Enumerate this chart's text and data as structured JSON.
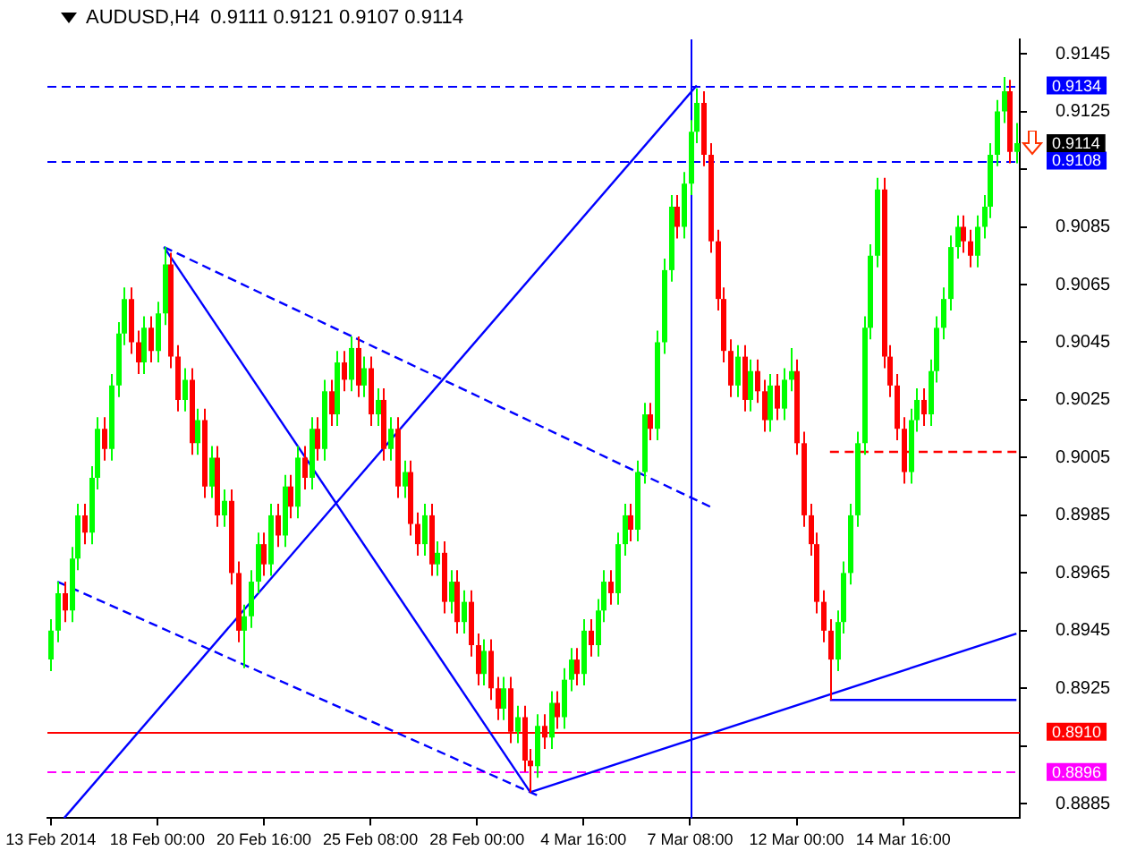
{
  "chart_data": {
    "type": "candlestick",
    "title": "AUDUSD,H4  0.9111 0.9121 0.9107 0.9114",
    "categories": [
      "13 Feb 2014",
      null,
      null,
      null,
      null,
      null,
      null,
      null,
      null,
      null,
      null,
      null,
      null,
      null,
      null,
      null,
      "18 Feb 00:00",
      null,
      null,
      null,
      null,
      null,
      null,
      null,
      null,
      null,
      null,
      null,
      null,
      null,
      null,
      null,
      "20 Feb 16:00",
      null,
      null,
      null,
      null,
      null,
      null,
      null,
      null,
      null,
      null,
      null,
      null,
      null,
      null,
      null,
      "25 Feb 08:00",
      null,
      null,
      null,
      null,
      null,
      null,
      null,
      null,
      null,
      null,
      null,
      null,
      null,
      null,
      null,
      "28 Feb 00:00",
      null,
      null,
      null,
      null,
      null,
      null,
      null,
      null,
      null,
      null,
      null,
      null,
      null,
      null,
      null,
      "4 Mar 16:00",
      null,
      null,
      null,
      null,
      null,
      null,
      null,
      null,
      null,
      null,
      null,
      null,
      null,
      null,
      null,
      "7 Mar 08:00",
      null,
      null,
      null,
      null,
      null,
      null,
      null,
      null,
      null,
      null,
      null,
      null,
      null,
      null,
      null,
      "12 Mar 00:00",
      null,
      null,
      null,
      null,
      null,
      null,
      null,
      null,
      null,
      null,
      null,
      null,
      null,
      null,
      null,
      "14 Mar 16:00",
      null,
      null,
      null,
      null,
      null,
      null,
      null,
      null,
      null,
      null,
      null,
      null,
      null,
      null,
      null,
      null,
      null
    ],
    "ohlc": [
      [
        0.8935,
        0.8949,
        0.8931,
        0.8945
      ],
      [
        0.8945,
        0.8962,
        0.8941,
        0.8958
      ],
      [
        0.8958,
        0.8962,
        0.8948,
        0.8952
      ],
      [
        0.8952,
        0.8974,
        0.8948,
        0.897
      ],
      [
        0.897,
        0.8989,
        0.8966,
        0.8985
      ],
      [
        0.8985,
        0.8989,
        0.8975,
        0.8979
      ],
      [
        0.8979,
        0.9002,
        0.8975,
        0.8998
      ],
      [
        0.8998,
        0.9019,
        0.8994,
        0.9015
      ],
      [
        0.9015,
        0.9019,
        0.9004,
        0.9008
      ],
      [
        0.9008,
        0.9034,
        0.9004,
        0.903
      ],
      [
        0.903,
        0.9052,
        0.9026,
        0.9048
      ],
      [
        0.9048,
        0.9064,
        0.9044,
        0.906
      ],
      [
        0.906,
        0.9064,
        0.9041,
        0.9045
      ],
      [
        0.9045,
        0.9049,
        0.9034,
        0.9038
      ],
      [
        0.9038,
        0.9054,
        0.9034,
        0.905
      ],
      [
        0.905,
        0.9054,
        0.9038,
        0.9042
      ],
      [
        0.9042,
        0.9059,
        0.9038,
        0.9055
      ],
      [
        0.9055,
        0.9078,
        0.9051,
        0.9072
      ],
      [
        0.9072,
        0.9076,
        0.9036,
        0.904
      ],
      [
        0.904,
        0.9044,
        0.9021,
        0.9025
      ],
      [
        0.9025,
        0.9036,
        0.9021,
        0.9032
      ],
      [
        0.9032,
        0.9036,
        0.9006,
        0.901
      ],
      [
        0.901,
        0.9022,
        0.9006,
        0.9018
      ],
      [
        0.9018,
        0.9022,
        0.8991,
        0.8995
      ],
      [
        0.8995,
        0.9009,
        0.8991,
        0.9005
      ],
      [
        0.9005,
        0.9009,
        0.8981,
        0.8985
      ],
      [
        0.8985,
        0.8994,
        0.8981,
        0.899
      ],
      [
        0.899,
        0.8994,
        0.8961,
        0.8965
      ],
      [
        0.8965,
        0.8969,
        0.8941,
        0.8945
      ],
      [
        0.8945,
        0.8954,
        0.8932,
        0.895
      ],
      [
        0.895,
        0.8966,
        0.8946,
        0.8962
      ],
      [
        0.8962,
        0.8979,
        0.8958,
        0.8975
      ],
      [
        0.8975,
        0.8979,
        0.8964,
        0.8968
      ],
      [
        0.8968,
        0.8989,
        0.8964,
        0.8985
      ],
      [
        0.8985,
        0.8989,
        0.8974,
        0.8978
      ],
      [
        0.8978,
        0.8999,
        0.8974,
        0.8995
      ],
      [
        0.8995,
        0.8999,
        0.8984,
        0.8988
      ],
      [
        0.8988,
        0.9009,
        0.8984,
        0.9005
      ],
      [
        0.9005,
        0.9009,
        0.8994,
        0.8998
      ],
      [
        0.8998,
        0.9019,
        0.8994,
        0.9015
      ],
      [
        0.9015,
        0.9019,
        0.9004,
        0.9008
      ],
      [
        0.9008,
        0.9032,
        0.9004,
        0.9028
      ],
      [
        0.9028,
        0.9032,
        0.9016,
        0.902
      ],
      [
        0.902,
        0.9042,
        0.9016,
        0.9038
      ],
      [
        0.9038,
        0.9042,
        0.9028,
        0.9032
      ],
      [
        0.9032,
        0.9047,
        0.9028,
        0.9043
      ],
      [
        0.9043,
        0.9047,
        0.9026,
        0.903
      ],
      [
        0.903,
        0.904,
        0.9026,
        0.9036
      ],
      [
        0.9036,
        0.904,
        0.9016,
        0.902
      ],
      [
        0.902,
        0.9029,
        0.9016,
        0.9025
      ],
      [
        0.9025,
        0.9029,
        0.9004,
        0.9008
      ],
      [
        0.9008,
        0.9019,
        0.9004,
        0.9015
      ],
      [
        0.9015,
        0.9019,
        0.8991,
        0.8995
      ],
      [
        0.8995,
        0.9004,
        0.8991,
        0.9
      ],
      [
        0.9,
        0.9004,
        0.8978,
        0.8982
      ],
      [
        0.8982,
        0.8986,
        0.8971,
        0.8975
      ],
      [
        0.8975,
        0.8989,
        0.8971,
        0.8985
      ],
      [
        0.8985,
        0.8989,
        0.8964,
        0.8968
      ],
      [
        0.8968,
        0.8976,
        0.8964,
        0.8972
      ],
      [
        0.8972,
        0.8976,
        0.8951,
        0.8955
      ],
      [
        0.8955,
        0.8966,
        0.8951,
        0.8962
      ],
      [
        0.8962,
        0.8966,
        0.8944,
        0.8948
      ],
      [
        0.8948,
        0.8959,
        0.8944,
        0.8955
      ],
      [
        0.8955,
        0.8959,
        0.8936,
        0.894
      ],
      [
        0.894,
        0.8944,
        0.8926,
        0.893
      ],
      [
        0.893,
        0.8942,
        0.8926,
        0.8938
      ],
      [
        0.8938,
        0.8942,
        0.8921,
        0.8925
      ],
      [
        0.8925,
        0.8929,
        0.8914,
        0.8918
      ],
      [
        0.8918,
        0.8929,
        0.8914,
        0.8925
      ],
      [
        0.8925,
        0.8929,
        0.8906,
        0.891
      ],
      [
        0.891,
        0.8919,
        0.8906,
        0.8915
      ],
      [
        0.8915,
        0.8919,
        0.8896,
        0.89
      ],
      [
        0.89,
        0.8904,
        0.8889,
        0.8898
      ],
      [
        0.8898,
        0.8916,
        0.8894,
        0.8912
      ],
      [
        0.8912,
        0.8916,
        0.8904,
        0.8908
      ],
      [
        0.8908,
        0.8924,
        0.8904,
        0.892
      ],
      [
        0.892,
        0.8924,
        0.8911,
        0.8915
      ],
      [
        0.8915,
        0.8932,
        0.8911,
        0.8928
      ],
      [
        0.8928,
        0.8939,
        0.8924,
        0.8935
      ],
      [
        0.8935,
        0.8939,
        0.8926,
        0.893
      ],
      [
        0.893,
        0.8949,
        0.8926,
        0.8945
      ],
      [
        0.8945,
        0.8949,
        0.8936,
        0.894
      ],
      [
        0.894,
        0.8956,
        0.8936,
        0.8952
      ],
      [
        0.8952,
        0.8966,
        0.8948,
        0.8962
      ],
      [
        0.8962,
        0.8966,
        0.8954,
        0.8958
      ],
      [
        0.8958,
        0.8979,
        0.8954,
        0.8975
      ],
      [
        0.8975,
        0.8989,
        0.8971,
        0.8985
      ],
      [
        0.8985,
        0.8989,
        0.8976,
        0.898
      ],
      [
        0.898,
        0.9004,
        0.8976,
        0.9
      ],
      [
        0.9,
        0.9024,
        0.8996,
        0.902
      ],
      [
        0.902,
        0.9024,
        0.9011,
        0.9015
      ],
      [
        0.9015,
        0.9049,
        0.9011,
        0.9045
      ],
      [
        0.9045,
        0.9074,
        0.9041,
        0.907
      ],
      [
        0.907,
        0.9096,
        0.9066,
        0.9092
      ],
      [
        0.9092,
        0.9096,
        0.9081,
        0.9085
      ],
      [
        0.9085,
        0.9104,
        0.9081,
        0.91
      ],
      [
        0.91,
        0.9122,
        0.9096,
        0.9118
      ],
      [
        0.9118,
        0.9133,
        0.9114,
        0.9128
      ],
      [
        0.9128,
        0.9132,
        0.9106,
        0.911
      ],
      [
        0.911,
        0.9114,
        0.9076,
        0.908
      ],
      [
        0.908,
        0.9084,
        0.9056,
        0.906
      ],
      [
        0.906,
        0.9064,
        0.9038,
        0.9042
      ],
      [
        0.9042,
        0.9046,
        0.9026,
        0.903
      ],
      [
        0.903,
        0.9044,
        0.9026,
        0.904
      ],
      [
        0.904,
        0.9044,
        0.9021,
        0.9025
      ],
      [
        0.9025,
        0.9039,
        0.9021,
        0.9035
      ],
      [
        0.9035,
        0.9039,
        0.9024,
        0.9028
      ],
      [
        0.9028,
        0.9032,
        0.9014,
        0.9018
      ],
      [
        0.9018,
        0.9034,
        0.9014,
        0.903
      ],
      [
        0.903,
        0.9034,
        0.9018,
        0.9022
      ],
      [
        0.9022,
        0.9036,
        0.9018,
        0.9032
      ],
      [
        0.9032,
        0.9043,
        0.9028,
        0.9035
      ],
      [
        0.9035,
        0.9039,
        0.9006,
        0.901
      ],
      [
        0.901,
        0.9014,
        0.8981,
        0.8985
      ],
      [
        0.8985,
        0.8989,
        0.8971,
        0.8975
      ],
      [
        0.8975,
        0.8979,
        0.8951,
        0.8955
      ],
      [
        0.8955,
        0.8959,
        0.8941,
        0.8945
      ],
      [
        0.8945,
        0.8949,
        0.8921,
        0.8935
      ],
      [
        0.8935,
        0.8952,
        0.8931,
        0.8948
      ],
      [
        0.8948,
        0.8969,
        0.8944,
        0.8965
      ],
      [
        0.8965,
        0.8989,
        0.8961,
        0.8985
      ],
      [
        0.8985,
        0.9014,
        0.8981,
        0.901
      ],
      [
        0.901,
        0.9054,
        0.9006,
        0.905
      ],
      [
        0.905,
        0.9079,
        0.9046,
        0.9075
      ],
      [
        0.9075,
        0.9102,
        0.9071,
        0.9098
      ],
      [
        0.9098,
        0.9102,
        0.9036,
        0.904
      ],
      [
        0.904,
        0.9044,
        0.9026,
        0.903
      ],
      [
        0.903,
        0.9034,
        0.9011,
        0.9015
      ],
      [
        0.9015,
        0.9019,
        0.8996,
        0.9
      ],
      [
        0.9,
        0.9022,
        0.8996,
        0.9018
      ],
      [
        0.9018,
        0.9029,
        0.9014,
        0.9025
      ],
      [
        0.9025,
        0.9029,
        0.9016,
        0.902
      ],
      [
        0.902,
        0.9039,
        0.9016,
        0.9035
      ],
      [
        0.9035,
        0.9054,
        0.9031,
        0.905
      ],
      [
        0.905,
        0.9064,
        0.9046,
        0.906
      ],
      [
        0.906,
        0.9082,
        0.9056,
        0.9078
      ],
      [
        0.9078,
        0.9089,
        0.9074,
        0.9085
      ],
      [
        0.9085,
        0.9089,
        0.9076,
        0.908
      ],
      [
        0.908,
        0.9084,
        0.9071,
        0.9075
      ],
      [
        0.9075,
        0.9089,
        0.9071,
        0.9085
      ],
      [
        0.9085,
        0.9096,
        0.9081,
        0.9092
      ],
      [
        0.9092,
        0.9114,
        0.9088,
        0.911
      ],
      [
        0.911,
        0.9129,
        0.9106,
        0.9125
      ],
      [
        0.9125,
        0.9137,
        0.9121,
        0.9132
      ],
      [
        0.9132,
        0.9136,
        0.9107,
        0.9111
      ],
      [
        0.9111,
        0.9121,
        0.9107,
        0.9114
      ]
    ],
    "series": [
      {
        "type": "line",
        "color": "#0000ff",
        "line_style": "solid",
        "values": [
          null,
          null,
          null,
          null,
          null,
          null,
          null,
          null,
          null,
          null,
          null,
          null,
          null,
          null,
          null,
          null,
          null,
          null,
          null,
          null,
          null,
          null,
          null,
          null,
          null,
          null,
          null,
          null,
          null,
          null,
          null,
          null,
          null,
          null,
          null,
          null,
          null,
          null,
          null,
          null,
          null,
          null,
          null,
          null,
          null,
          null,
          null,
          null,
          null,
          null,
          null,
          null,
          null,
          null,
          null,
          null,
          null,
          null,
          null,
          null,
          null,
          null,
          null,
          null,
          null,
          null,
          null,
          null,
          null,
          null,
          null,
          null,
          0.8889,
          null,
          null,
          null,
          null,
          null,
          null,
          null,
          null,
          null,
          null,
          null,
          null,
          null,
          null,
          null,
          null,
          null,
          null,
          null,
          null,
          null,
          null,
          null,
          null,
          null,
          null,
          null,
          null,
          null,
          null,
          null,
          null,
          null,
          null,
          null,
          null,
          null,
          null,
          null,
          null,
          null,
          null,
          null,
          null,
          null,
          null,
          null,
          null,
          null,
          null,
          null,
          null,
          null,
          null,
          null,
          null,
          null,
          null,
          null,
          null,
          null,
          null,
          null,
          null,
          null,
          null,
          null,
          null,
          null,
          null,
          null,
          null,
          0.8944
        ]
      },
      {
        "type": "line",
        "color": "#0000ff",
        "line_style": "solid",
        "values": [
          null,
          null,
          0.888,
          null,
          null,
          null,
          null,
          null,
          null,
          null,
          null,
          null,
          null,
          null,
          null,
          null,
          null,
          null,
          null,
          null,
          null,
          null,
          null,
          null,
          null,
          null,
          null,
          null,
          null,
          null,
          null,
          null,
          null,
          null,
          null,
          null,
          null,
          null,
          null,
          null,
          null,
          null,
          null,
          null,
          null,
          null,
          null,
          null,
          null,
          null,
          null,
          null,
          null,
          null,
          null,
          null,
          null,
          null,
          null,
          null,
          null,
          null,
          null,
          null,
          null,
          null,
          null,
          null,
          null,
          null,
          null,
          null,
          null,
          null,
          null,
          null,
          null,
          null,
          null,
          null,
          null,
          null,
          null,
          null,
          null,
          null,
          null,
          null,
          null,
          null,
          null,
          null,
          null,
          null,
          null,
          null,
          null,
          0.9134,
          null,
          null,
          null,
          null,
          null,
          null,
          null,
          null,
          null,
          null,
          null,
          null,
          null,
          null,
          null,
          null,
          null,
          null,
          null,
          null,
          null,
          null,
          null,
          null,
          null,
          null,
          null,
          null,
          null,
          null,
          null,
          null,
          null,
          null,
          null,
          null,
          null,
          null,
          null,
          null,
          null,
          null,
          null,
          null,
          null,
          null,
          null,
          null
        ]
      },
      {
        "type": "line",
        "color": "#0000ff",
        "line_style": "solid",
        "values": [
          null,
          null,
          null,
          null,
          null,
          null,
          null,
          null,
          null,
          null,
          null,
          null,
          null,
          null,
          null,
          null,
          null,
          0.9078,
          null,
          null,
          null,
          null,
          null,
          null,
          null,
          null,
          null,
          null,
          null,
          null,
          null,
          null,
          null,
          null,
          null,
          null,
          null,
          null,
          null,
          null,
          null,
          null,
          null,
          null,
          null,
          null,
          null,
          null,
          null,
          null,
          null,
          null,
          null,
          null,
          null,
          null,
          null,
          null,
          null,
          null,
          null,
          null,
          null,
          null,
          null,
          null,
          null,
          null,
          null,
          null,
          null,
          null,
          0.8889,
          null,
          null,
          null,
          null,
          null,
          null,
          null,
          null,
          null,
          null,
          null,
          null,
          null,
          null,
          null,
          null,
          null,
          null,
          null,
          null,
          null,
          null,
          null,
          null,
          null,
          null,
          null,
          null,
          null,
          null,
          null,
          null,
          null,
          null,
          null,
          null,
          null,
          null,
          null,
          null,
          null,
          null,
          null,
          null,
          null,
          null,
          null,
          null,
          null,
          null,
          null,
          null,
          null,
          null,
          null,
          null,
          null,
          null,
          null,
          null,
          null,
          null,
          null,
          null,
          null,
          null,
          null,
          null,
          null,
          null,
          null,
          null,
          null
        ]
      },
      {
        "type": "line",
        "color": "#0000ff",
        "line_style": "dashed",
        "values": [
          null,
          null,
          null,
          null,
          null,
          null,
          null,
          null,
          null,
          null,
          null,
          null,
          null,
          null,
          null,
          null,
          null,
          0.9078,
          null,
          null,
          null,
          null,
          null,
          null,
          null,
          null,
          null,
          null,
          null,
          null,
          null,
          null,
          null,
          null,
          null,
          null,
          null,
          null,
          null,
          null,
          null,
          null,
          null,
          null,
          null,
          null,
          null,
          null,
          null,
          null,
          null,
          null,
          null,
          null,
          null,
          null,
          null,
          null,
          null,
          null,
          null,
          null,
          null,
          null,
          null,
          null,
          null,
          null,
          null,
          null,
          null,
          null,
          null,
          null,
          null,
          null,
          null,
          null,
          null,
          null,
          null,
          null,
          null,
          null,
          null,
          null,
          null,
          null,
          null,
          null,
          null,
          null,
          null,
          null,
          null,
          null,
          null,
          null,
          null,
          0.8988,
          null,
          null,
          null,
          null,
          null,
          null,
          null,
          null,
          null,
          null,
          null,
          null,
          null,
          null,
          null,
          null,
          null,
          null,
          null,
          null,
          null,
          null,
          null,
          null,
          null,
          null,
          null,
          null,
          null,
          null,
          null,
          null,
          null,
          null,
          null,
          null,
          null,
          null,
          null,
          null,
          null,
          null,
          null,
          null,
          null,
          null
        ]
      },
      {
        "type": "line",
        "color": "#0000ff",
        "line_style": "dashed",
        "values": [
          null,
          0.8962,
          null,
          null,
          null,
          null,
          null,
          null,
          null,
          null,
          null,
          null,
          null,
          null,
          null,
          null,
          null,
          null,
          null,
          null,
          null,
          null,
          null,
          null,
          null,
          null,
          null,
          null,
          null,
          null,
          null,
          null,
          null,
          null,
          null,
          null,
          null,
          null,
          null,
          null,
          null,
          null,
          null,
          null,
          null,
          null,
          null,
          null,
          null,
          null,
          null,
          null,
          null,
          null,
          null,
          null,
          null,
          null,
          null,
          null,
          null,
          null,
          null,
          null,
          null,
          null,
          null,
          null,
          null,
          null,
          null,
          null,
          null,
          0.8888,
          null,
          null,
          null,
          null,
          null,
          null,
          null,
          null,
          null,
          null,
          null,
          null,
          null,
          null,
          null,
          null,
          null,
          null,
          null,
          null,
          null,
          null,
          null,
          null,
          null,
          null,
          null,
          null,
          null,
          null,
          null,
          null,
          null,
          null,
          null,
          null,
          null,
          null,
          null,
          null,
          null,
          null,
          null,
          null,
          null,
          null,
          null,
          null,
          null,
          null,
          null,
          null,
          null,
          null,
          null,
          null,
          null,
          null,
          null,
          null,
          null,
          null,
          null,
          null,
          null,
          null,
          null,
          null,
          null,
          null,
          null,
          null
        ]
      },
      {
        "type": "line",
        "color": "#0000ff",
        "line_style": "solid",
        "values": [
          null,
          null,
          null,
          null,
          null,
          null,
          null,
          null,
          null,
          null,
          null,
          null,
          null,
          null,
          null,
          null,
          null,
          null,
          null,
          null,
          null,
          null,
          null,
          null,
          null,
          null,
          null,
          null,
          null,
          null,
          null,
          null,
          null,
          null,
          null,
          null,
          null,
          null,
          null,
          null,
          null,
          null,
          null,
          null,
          null,
          null,
          null,
          null,
          null,
          null,
          null,
          null,
          null,
          null,
          null,
          null,
          null,
          null,
          null,
          null,
          null,
          null,
          null,
          null,
          null,
          null,
          null,
          null,
          null,
          null,
          null,
          null,
          null,
          null,
          null,
          null,
          null,
          null,
          null,
          null,
          null,
          null,
          null,
          null,
          null,
          null,
          null,
          null,
          null,
          null,
          null,
          null,
          null,
          null,
          null,
          null,
          null,
          null,
          null,
          null,
          null,
          null,
          null,
          null,
          null,
          null,
          null,
          null,
          null,
          null,
          null,
          null,
          null,
          null,
          null,
          null,
          null,
          0.8921,
          null,
          null,
          null,
          null,
          null,
          null,
          null,
          null,
          null,
          null,
          null,
          null,
          null,
          null,
          null,
          null,
          null,
          null,
          null,
          null,
          null,
          null,
          null,
          null,
          null,
          null,
          null,
          0.8921
        ]
      },
      {
        "type": "line",
        "color": "#ff0000",
        "line_style": "dashed",
        "values": [
          null,
          null,
          null,
          null,
          null,
          null,
          null,
          null,
          null,
          null,
          null,
          null,
          null,
          null,
          null,
          null,
          null,
          null,
          null,
          null,
          null,
          null,
          null,
          null,
          null,
          null,
          null,
          null,
          null,
          null,
          null,
          null,
          null,
          null,
          null,
          null,
          null,
          null,
          null,
          null,
          null,
          null,
          null,
          null,
          null,
          null,
          null,
          null,
          null,
          null,
          null,
          null,
          null,
          null,
          null,
          null,
          null,
          null,
          null,
          null,
          null,
          null,
          null,
          null,
          null,
          null,
          null,
          null,
          null,
          null,
          null,
          null,
          null,
          null,
          null,
          null,
          null,
          null,
          null,
          null,
          null,
          null,
          null,
          null,
          null,
          null,
          null,
          null,
          null,
          null,
          null,
          null,
          null,
          null,
          null,
          null,
          null,
          null,
          null,
          null,
          null,
          null,
          null,
          null,
          null,
          null,
          null,
          null,
          null,
          null,
          null,
          null,
          null,
          null,
          null,
          null,
          null,
          0.9007,
          null,
          null,
          null,
          null,
          null,
          null,
          null,
          null,
          null,
          null,
          null,
          null,
          null,
          null,
          null,
          null,
          null,
          null,
          null,
          null,
          null,
          null,
          null,
          null,
          null,
          null,
          null,
          0.9007
        ]
      }
    ],
    "ylim": [
      0.888,
      0.915
    ],
    "yticks": [
      0.8885,
      {
        "value": 0.8905,
        "label": null
      },
      0.8925,
      0.8945,
      0.8965,
      0.8985,
      0.9005,
      0.9025,
      0.9045,
      0.9065,
      0.9085,
      {
        "value": 0.9105,
        "label": null
      },
      0.9125,
      0.9145
    ],
    "ref_lines": [
      {
        "axis": "y",
        "value": 0.9134,
        "label": "0.9134",
        "color": "#0000ff",
        "line_style": "dashed"
      },
      {
        "axis": "y",
        "value": 0.9108,
        "label": "0.9108",
        "color": "#0000ff",
        "line_style": "dashed"
      },
      {
        "axis": "y",
        "value": 0.891,
        "label": "0.8910",
        "color": "#ff0000",
        "line_style": "solid"
      },
      {
        "axis": "y",
        "value": 0.8896,
        "label": "0.8896",
        "color": "#ff00ff",
        "line_style": "dashed"
      },
      {
        "axis": "x",
        "value": "7 Mar 08:00",
        "color": "#0000ff",
        "line_style": "solid"
      }
    ],
    "annotations": [
      "0.9114"
    ],
    "marker": "none"
  }
}
